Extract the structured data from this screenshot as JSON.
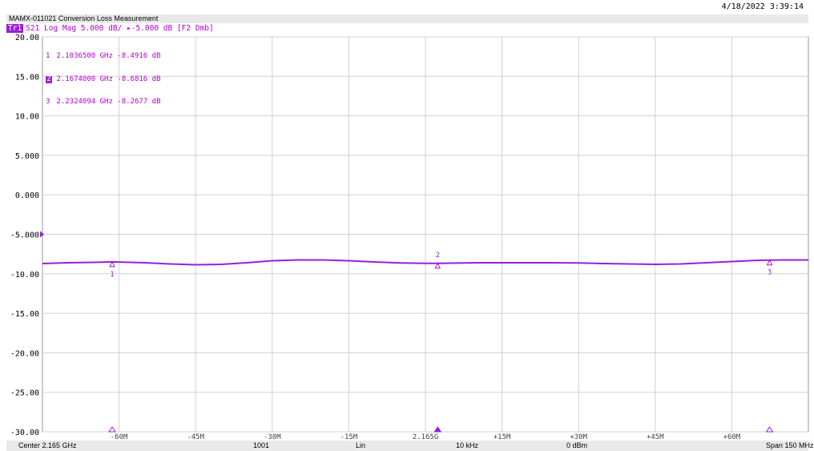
{
  "datetime": "4/18/2022 3:39:14",
  "title": "MAMX-011021 Conversion Loss Measurement",
  "trace": {
    "badge": "Tr1",
    "text": "S21 Log Mag 5.000 dB/ ▸-5.000 dB [F2 Dmb]"
  },
  "markers": [
    {
      "num": "1",
      "freq": "2.1036500 GHz",
      "value": "-8.4916 dB",
      "active": false
    },
    {
      "num": "2",
      "freq": "2.1674000 GHz",
      "value": "-8.6816 dB",
      "active": true
    },
    {
      "num": "3",
      "freq": "2.2324094 GHz",
      "value": "-8.2677 dB",
      "active": false
    }
  ],
  "footer": {
    "center": "Center 2.165 GHz",
    "points": "1001",
    "sweep": "Lin",
    "ifbw": "10 kHz",
    "power": "0 dBm",
    "span": "Span 150 MHz"
  },
  "colors": {
    "trace": "#9b1ed6",
    "grid": "#d0d0d0",
    "text": "#b000d0"
  },
  "chart_data": {
    "type": "line",
    "ylim": [
      -30,
      20
    ],
    "xlim_offset_mhz": [
      -75,
      75
    ],
    "y_ticks": [
      "20.00",
      "15.00",
      "10.00",
      "5.000",
      "0.000",
      "-5.000",
      "-10.00",
      "-15.00",
      "-20.00",
      "-25.00",
      "-30.00"
    ],
    "x_ticks": [
      {
        "label": "-60M",
        "value": -60
      },
      {
        "label": "-45M",
        "value": -45
      },
      {
        "label": "-30M",
        "value": -30
      },
      {
        "label": "-15M",
        "value": -15
      },
      {
        "label": "2.165G",
        "value": 0
      },
      {
        "label": "+15M",
        "value": 15
      },
      {
        "label": "+30M",
        "value": 30
      },
      {
        "label": "+45M",
        "value": 45
      },
      {
        "label": "+60M",
        "value": 60
      }
    ],
    "series": [
      {
        "x": [
          -75,
          -70,
          -65,
          -61.35,
          -55,
          -50,
          -45,
          -40,
          -35,
          -30,
          -25,
          -20,
          -15,
          -10,
          -5,
          0,
          2.4,
          5,
          10,
          15,
          20,
          25,
          30,
          35,
          40,
          45,
          50,
          55,
          60,
          65,
          67.4,
          70,
          75
        ],
        "y": [
          -8.7,
          -8.6,
          -8.55,
          -8.49,
          -8.6,
          -8.75,
          -8.85,
          -8.8,
          -8.6,
          -8.35,
          -8.25,
          -8.25,
          -8.35,
          -8.5,
          -8.62,
          -8.68,
          -8.68,
          -8.65,
          -8.6,
          -8.6,
          -8.6,
          -8.6,
          -8.62,
          -8.7,
          -8.75,
          -8.8,
          -8.75,
          -8.6,
          -8.45,
          -8.3,
          -8.27,
          -8.25,
          -8.25
        ]
      }
    ],
    "markers": [
      {
        "label": "1",
        "x": -61.35,
        "y": -8.4916
      },
      {
        "label": "2",
        "x": 2.4,
        "y": -8.6816
      },
      {
        "label": "3",
        "x": 67.4,
        "y": -8.2677
      }
    ],
    "reference_level": -5
  }
}
